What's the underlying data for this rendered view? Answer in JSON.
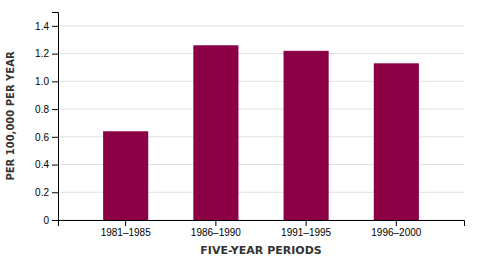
{
  "chart_data": {
    "type": "bar",
    "categories": [
      "1981–1985",
      "1986–1990",
      "1991–1995",
      "1996–2000"
    ],
    "values": [
      0.64,
      1.26,
      1.22,
      1.13
    ],
    "color": "#8B0045",
    "xlabel": "FIVE-YEAR PERIODS",
    "ylabel": "PER 100,000 PER YEAR",
    "ylim": [
      0,
      1.5
    ],
    "yticks": [
      0,
      0.2,
      0.4,
      0.6,
      0.8,
      {
        "value": 1.0,
        "label": "1.0"
      },
      1.2,
      1.4
    ],
    "grid": true
  }
}
